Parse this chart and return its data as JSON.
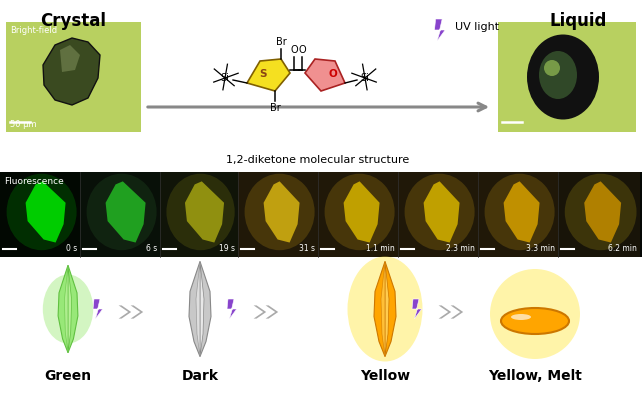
{
  "title_left": "Crystal",
  "title_right": "Liquid",
  "uv_label": "UV light",
  "mol_label": "1,2-diketone molecular structure",
  "fluor_label": "Fluorescence",
  "brightfield_label": "Bright-field",
  "scale_label": "50 μm",
  "time_labels": [
    "0 s",
    "6 s",
    "19 s",
    "31 s",
    "1.1 min",
    "2.3 min",
    "3.3 min",
    "6.2 min"
  ],
  "bottom_labels": [
    "Green",
    "Dark",
    "Yellow",
    "Yellow, Melt"
  ],
  "bg_color": "#ffffff",
  "crystal_bg": "#b8d060",
  "liquid_bg": "#b8d060",
  "arrow_color": "#888888",
  "lightning_color": "#8844cc",
  "fluor_bg": "#080808"
}
